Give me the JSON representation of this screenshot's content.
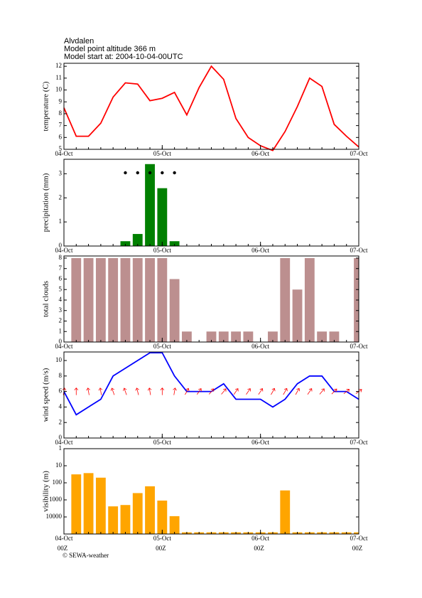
{
  "header": {
    "location": "Alvdalen",
    "altitude": "Model point altitude  366 m",
    "start": "Model start at: 2004-10-04-00UTC"
  },
  "footer": "© SEWA-weather",
  "chart_data": [
    {
      "type": "line",
      "ylabel": "temperature (C)",
      "color": "#ff0000",
      "x": [
        0,
        3,
        6,
        9,
        12,
        15,
        18,
        21,
        24,
        27,
        30,
        33,
        36,
        39,
        42,
        45,
        48,
        51,
        54,
        57,
        60,
        63,
        66,
        69,
        72
      ],
      "values": [
        8.5,
        6.1,
        6.1,
        7.2,
        9.4,
        10.6,
        10.5,
        9.1,
        9.3,
        9.8,
        7.9,
        10.2,
        12.0,
        10.9,
        7.6,
        6.0,
        5.3,
        4.9,
        6.5,
        8.6,
        11.0,
        10.3,
        7.1,
        6.1,
        5.2
      ],
      "xlim": [
        0,
        72
      ],
      "xticks": [
        {
          "value": 0,
          "label": "04-Oct"
        },
        {
          "value": 24,
          "label": "05-Oct"
        },
        {
          "value": 48,
          "label": "06-Oct"
        },
        {
          "value": 72,
          "label": "07-Oct"
        }
      ],
      "ylim": [
        5,
        12.25
      ],
      "yticks": [
        5,
        6,
        7,
        8,
        9,
        10,
        11,
        12
      ]
    },
    {
      "type": "bar",
      "ylabel": "precipitation (mm)",
      "color": "#008000",
      "x": [
        0,
        3,
        6,
        9,
        12,
        15,
        18,
        21,
        24,
        27,
        30,
        33,
        36,
        39,
        42,
        45,
        48,
        51,
        54,
        57,
        60,
        63,
        66,
        69,
        72
      ],
      "values": [
        null,
        0,
        0,
        0,
        0,
        0.2,
        0.5,
        3.4,
        2.4,
        0.2,
        0,
        0,
        0,
        0,
        0,
        0,
        0,
        0,
        0,
        0,
        0,
        0,
        0,
        0,
        0
      ],
      "xlim": [
        0,
        72
      ],
      "xticks": [
        {
          "value": 0,
          "label": "04-Oct"
        },
        {
          "value": 24,
          "label": "05-Oct"
        },
        {
          "value": 48,
          "label": "06-Oct"
        },
        {
          "value": 72,
          "label": "07-Oct"
        }
      ],
      "ylim": [
        0,
        3.6
      ],
      "yticks": [
        0,
        1,
        2,
        3
      ]
    },
    {
      "type": "bar",
      "ylabel": "total clouds",
      "color": "#bc8f8f",
      "x": [
        0,
        3,
        6,
        9,
        12,
        15,
        18,
        21,
        24,
        27,
        30,
        33,
        36,
        39,
        42,
        45,
        48,
        51,
        54,
        57,
        60,
        63,
        66,
        69,
        72
      ],
      "values": [
        null,
        8,
        8,
        8,
        8,
        8,
        8,
        8,
        8,
        6,
        1,
        0,
        1,
        1,
        1,
        1,
        0,
        1,
        8,
        5,
        8,
        1,
        1,
        0,
        8
      ],
      "xlim": [
        0,
        72
      ],
      "xticks": [
        {
          "value": 0,
          "label": "04-Oct"
        },
        {
          "value": 24,
          "label": "05-Oct"
        },
        {
          "value": 48,
          "label": "06-Oct"
        },
        {
          "value": 72,
          "label": "07-Oct"
        }
      ],
      "ylim": [
        0,
        8.2
      ],
      "yticks": [
        0,
        1,
        2,
        3,
        4,
        5,
        6,
        7,
        8
      ]
    },
    {
      "type": "line",
      "ylabel": "wind speed (m/s)",
      "color": "#0000ff",
      "arrow_color": "#ff0000",
      "x": [
        0,
        3,
        6,
        9,
        12,
        15,
        18,
        21,
        24,
        27,
        30,
        33,
        36,
        39,
        42,
        45,
        48,
        51,
        54,
        57,
        60,
        63,
        66,
        69,
        72
      ],
      "values": [
        6,
        3,
        4,
        5,
        8,
        9,
        10,
        11,
        11,
        8,
        6,
        6,
        6,
        7,
        5,
        5,
        5,
        4,
        5,
        7,
        8,
        8,
        6,
        6,
        5
      ],
      "direction": [
        10,
        0,
        350,
        350,
        340,
        340,
        345,
        350,
        0,
        10,
        30,
        35,
        40,
        40,
        35,
        35,
        35,
        30,
        30,
        30,
        35,
        40,
        45,
        50,
        55
      ],
      "xlim": [
        0,
        72
      ],
      "xticks": [
        {
          "value": 0,
          "label": "04-Oct"
        },
        {
          "value": 24,
          "label": "05-Oct"
        },
        {
          "value": 48,
          "label": "06-Oct"
        },
        {
          "value": 72,
          "label": "07-Oct"
        }
      ],
      "ylim": [
        0,
        11.1
      ],
      "yticks": [
        0,
        2,
        4,
        6,
        8,
        10
      ]
    },
    {
      "type": "bar",
      "ylabel": "visibility (m)",
      "color": "#ffa500",
      "log": true,
      "x": [
        0,
        3,
        6,
        9,
        12,
        15,
        18,
        21,
        24,
        27,
        30,
        33,
        36,
        39,
        42,
        45,
        48,
        51,
        54,
        57,
        60,
        63,
        66,
        69,
        72
      ],
      "values": [
        null,
        32,
        27,
        50,
        2400,
        2000,
        400,
        160,
        1100,
        9000,
        80000,
        80000,
        80000,
        80000,
        80000,
        80000,
        80000,
        80000,
        280,
        80000,
        80000,
        80000,
        80000,
        80000,
        80000
      ],
      "xlim": [
        0,
        72
      ],
      "xticks": [
        {
          "value": 0,
          "label": "04-Oct"
        },
        {
          "value": 24,
          "label": "05-Oct"
        },
        {
          "value": 48,
          "label": "06-Oct"
        },
        {
          "value": 72,
          "label": "07-Oct"
        }
      ],
      "xticks_sub": [
        "00Z",
        "00Z",
        "00Z",
        "00Z"
      ],
      "ylim": [
        100000,
        1
      ],
      "yticks": [
        1,
        10,
        100,
        1000,
        10000
      ]
    }
  ]
}
